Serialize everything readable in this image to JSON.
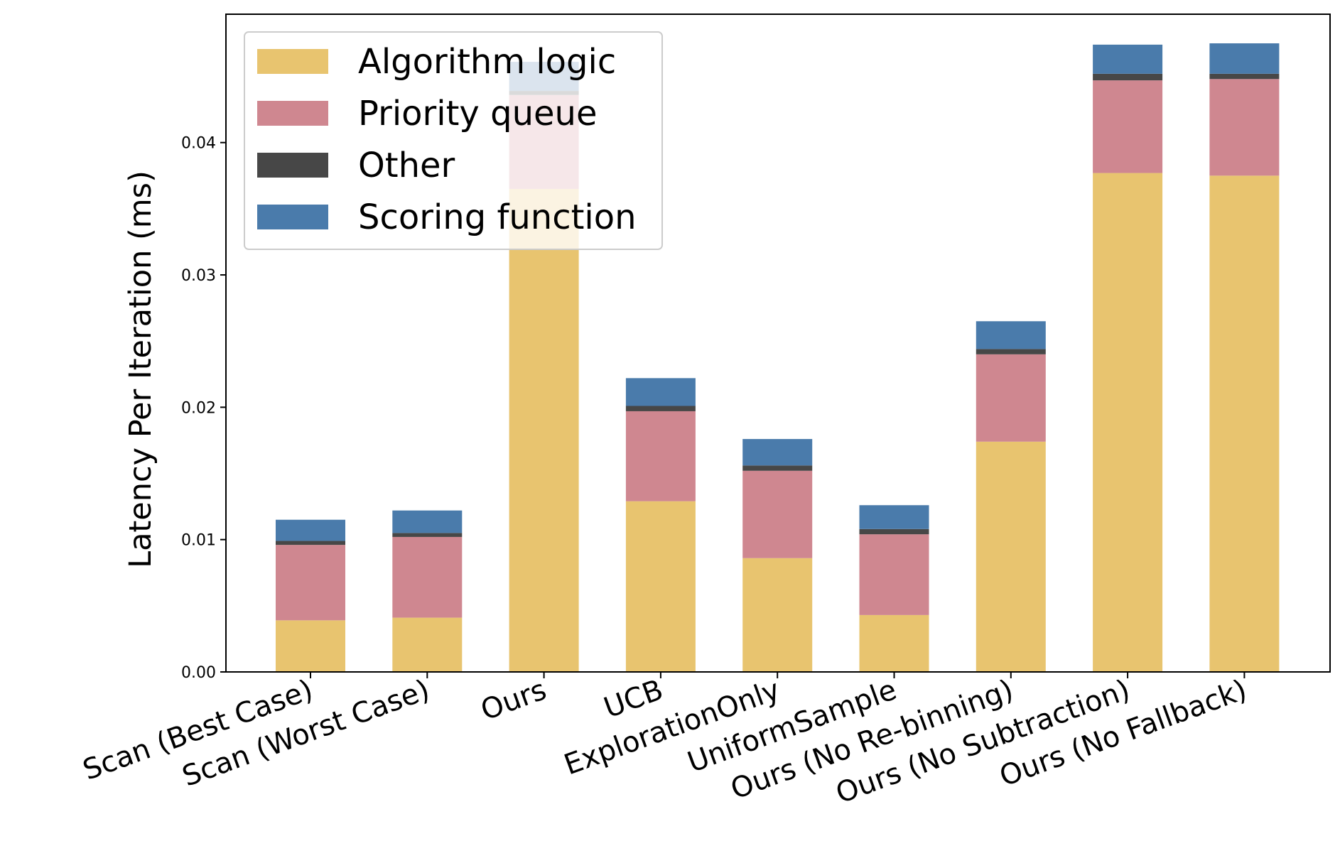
{
  "chart_data": {
    "type": "bar",
    "stacked": true,
    "title": "",
    "xlabel": "",
    "ylabel": "Latency Per Iteration (ms)",
    "ylim": [
      0,
      0.0497
    ],
    "yticks": [
      "0.00",
      "0.01",
      "0.02",
      "0.03",
      "0.04"
    ],
    "ytick_values": [
      0,
      0.01,
      0.02,
      0.03,
      0.04
    ],
    "categories": [
      "Scan (Best Case)",
      "Scan (Worst Case)",
      "Ours",
      "UCB",
      "ExplorationOnly",
      "UniformSample",
      "Ours (No Re-binning)",
      "Ours (No Subtraction)",
      "Ours (No Fallback)"
    ],
    "series": [
      {
        "name": "Algorithm logic",
        "color": "#E8C46F",
        "values": [
          0.0039,
          0.0041,
          0.0365,
          0.0129,
          0.0086,
          0.0043,
          0.0174,
          0.0377,
          0.0375
        ]
      },
      {
        "name": "Priority queue",
        "color": "#CF8790",
        "values": [
          0.0057,
          0.0061,
          0.0071,
          0.0068,
          0.0066,
          0.0061,
          0.0066,
          0.007,
          0.0073
        ]
      },
      {
        "name": "Other",
        "color": "#474747",
        "values": [
          0.0003,
          0.0003,
          0.0003,
          0.0004,
          0.0004,
          0.0004,
          0.0004,
          0.0005,
          0.0004
        ]
      },
      {
        "name": "Scoring function",
        "color": "#4A7BAB",
        "values": [
          0.0016,
          0.0017,
          0.0022,
          0.0021,
          0.002,
          0.0018,
          0.0021,
          0.0022,
          0.0023
        ]
      }
    ],
    "legend_position": "top-left",
    "grid": false
  }
}
